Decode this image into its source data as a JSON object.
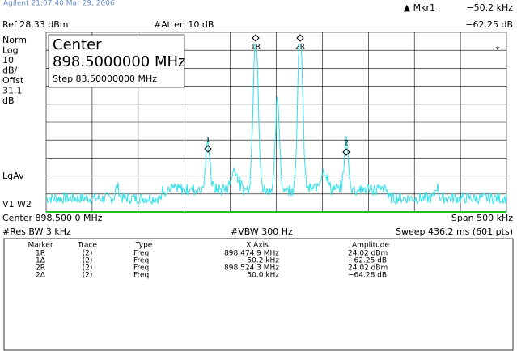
{
  "top_note": "Agilent 21:07:40  Mar 29, 2006",
  "marker_readout": {
    "label": "▲ Mkr1",
    "x": "−50.2 kHz",
    "y": "−62.25 dB"
  },
  "ref": "Ref 28.33 dBm",
  "atten": "#Atten 10 dB",
  "left_labels": [
    "Norm",
    "Log",
    "10",
    "dB/",
    "Offst",
    "31.1",
    "dB"
  ],
  "lgav": "LgAv",
  "v1w2": "V1  W2",
  "center_box": {
    "title": "Center",
    "value": "898.5000000 MHz",
    "step": "Step 83.50000000 MHz"
  },
  "graph_markers": [
    "1R",
    "2R",
    "1",
    "2",
    "*"
  ],
  "footer": {
    "center": "Center 898.500 0 MHz",
    "span": "Span 500 kHz",
    "rbw": "#Res BW 3 kHz",
    "vbw": "#VBW 300 Hz",
    "sweep": "Sweep 436.2 ms (601 pts)"
  },
  "table": {
    "headers": [
      "Marker",
      "Trace",
      "Type",
      "X Axis",
      "Amplitude"
    ],
    "rows": [
      [
        "1R",
        "(2)",
        "Freq",
        "898.474 9 MHz",
        "24.02 dBm"
      ],
      [
        "1Δ",
        "(2)",
        "Freq",
        "−50.2 kHz",
        "−62.25 dB"
      ],
      [
        "2R",
        "(2)",
        "Freq",
        "898.524 3 MHz",
        "24.02 dBm"
      ],
      [
        "2Δ",
        "(2)",
        "Freq",
        "50.0 kHz",
        "−64.28 dB"
      ]
    ]
  }
}
